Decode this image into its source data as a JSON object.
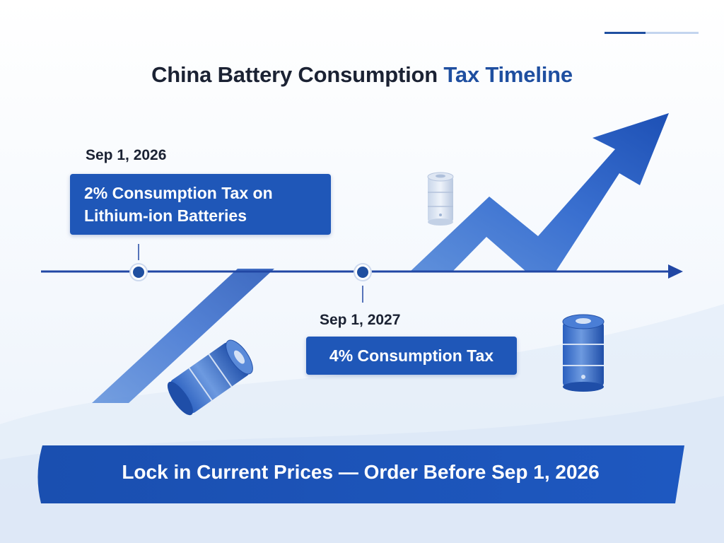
{
  "title": {
    "main": "China Battery Consumption",
    "accent": "Tax Timeline"
  },
  "colors": {
    "primary": "#1f57b8",
    "accent_text": "#1f4fa0",
    "arrow": "#2a62c9",
    "timeline": "#2147a4"
  },
  "milestones": [
    {
      "date": "Sep 1, 2026",
      "label_line1": "2% Consumption Tax on",
      "label_line2": "Lithium-ion Batteries"
    },
    {
      "date": "Sep 1, 2027",
      "label_line1": "4% Consumption Tax"
    }
  ],
  "banner": {
    "text": "Lock in Current Prices — Order Before Sep 1, 2026"
  },
  "icons": [
    "battery-icon",
    "trend-arrow-icon",
    "timeline-arrow-icon"
  ]
}
